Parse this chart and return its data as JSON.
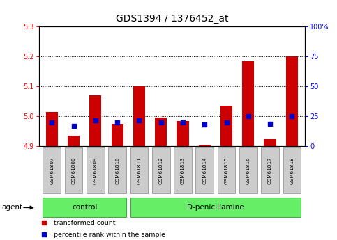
{
  "title": "GDS1394 / 1376452_at",
  "samples": [
    "GSM61807",
    "GSM61808",
    "GSM61809",
    "GSM61810",
    "GSM61811",
    "GSM61812",
    "GSM61813",
    "GSM61814",
    "GSM61815",
    "GSM61816",
    "GSM61817",
    "GSM61818"
  ],
  "red_values": [
    5.015,
    4.935,
    5.07,
    4.975,
    5.1,
    4.995,
    4.985,
    4.905,
    5.035,
    5.185,
    4.925,
    5.2
  ],
  "blue_values_pct": [
    20,
    17,
    22,
    20,
    22,
    20,
    20,
    18,
    20,
    25,
    19,
    25
  ],
  "ylim_left": [
    4.9,
    5.3
  ],
  "ylim_right": [
    0,
    100
  ],
  "y_ticks_left": [
    4.9,
    5.0,
    5.1,
    5.2,
    5.3
  ],
  "y_ticks_right": [
    0,
    25,
    50,
    75,
    100
  ],
  "y_tick_labels_right": [
    "0",
    "25",
    "50",
    "75",
    "100%"
  ],
  "bar_bottom": 4.9,
  "groups": [
    {
      "label": "control",
      "indices": [
        0,
        1,
        2,
        3
      ]
    },
    {
      "label": "D-penicillamine",
      "indices": [
        4,
        5,
        6,
        7,
        8,
        9,
        10,
        11
      ]
    }
  ],
  "agent_label": "agent",
  "legend_red": "transformed count",
  "legend_blue": "percentile rank within the sample",
  "bar_color": "#cc0000",
  "blue_color": "#0000cc",
  "green_color": "#66ee66",
  "gray_color": "#cccccc",
  "title_fontsize": 10,
  "tick_label_fontsize": 7,
  "bar_width": 0.55,
  "blue_square_size": 18
}
